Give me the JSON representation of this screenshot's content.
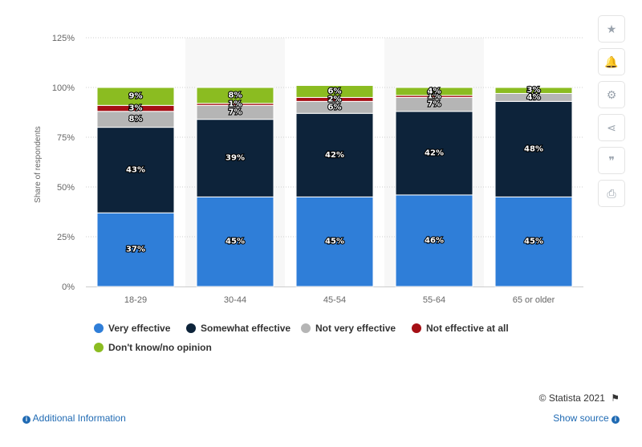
{
  "chart_data": {
    "type": "bar",
    "stacked": true,
    "categories": [
      "18-29",
      "30-44",
      "45-54",
      "55-64",
      "65 or older"
    ],
    "series": [
      {
        "name": "Very effective",
        "color": "#2f7ed8",
        "values": [
          37,
          45,
          45,
          46,
          45
        ],
        "labels": [
          "37%",
          "45%",
          "45%",
          "46%",
          "45%"
        ]
      },
      {
        "name": "Somewhat effective",
        "color": "#0d233a",
        "values": [
          43,
          39,
          42,
          42,
          48
        ],
        "labels": [
          "43%",
          "39%",
          "42%",
          "42%",
          "48%"
        ]
      },
      {
        "name": "Not very effective",
        "color": "#b5b5b5",
        "values": [
          8,
          7,
          6,
          7,
          4
        ],
        "labels": [
          "8%",
          "7%",
          "6%",
          "7%",
          "4%"
        ]
      },
      {
        "name": "Not effective at all",
        "color": "#a50f15",
        "values": [
          3,
          1,
          2,
          1,
          0
        ],
        "labels": [
          "3%",
          "1%",
          "2%",
          "1%",
          ""
        ]
      },
      {
        "name": "Don't know/no opinion",
        "color": "#8bbc21",
        "values": [
          9,
          8,
          6,
          4,
          3
        ],
        "labels": [
          "9%",
          "8%",
          "6%",
          "4%",
          "3%"
        ]
      }
    ],
    "ylabel": "Share of respondents",
    "ylim": [
      0,
      125
    ],
    "yticks": [
      0,
      25,
      50,
      75,
      100,
      125
    ],
    "ytick_labels": [
      "0%",
      "25%",
      "50%",
      "75%",
      "100%",
      "125%"
    ],
    "grid": true,
    "legend_position": "bottom-left"
  },
  "toolbar": {
    "star_icon": "★",
    "bell_icon": "🔔",
    "gear_icon": "⚙",
    "share_icon": "⋖",
    "quote_icon": "❞",
    "print_icon": "⎙"
  },
  "footer": {
    "credit": "© Statista 2021",
    "additional_info": "Additional Information",
    "show_source": "Show source"
  }
}
